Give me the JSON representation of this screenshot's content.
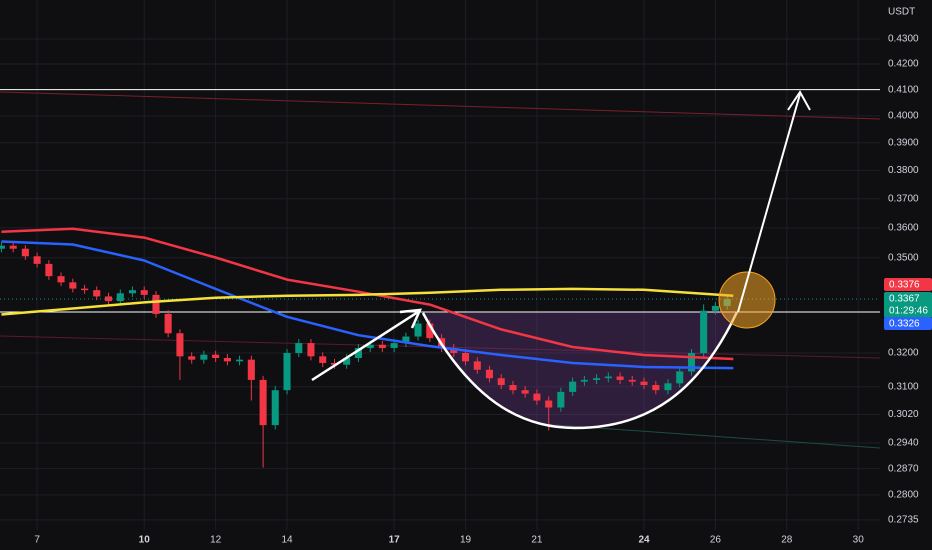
{
  "chart_data": {
    "type": "candlestick",
    "y_axis_label": "USDT",
    "log_scale": true,
    "grid": true,
    "up_color": "#089981",
    "down_color": "#f23645",
    "xlim": [
      5.96,
      30.61
    ],
    "ylim": [
      0.2709,
      0.4461
    ],
    "xticks": [
      7,
      10,
      12,
      14,
      17,
      19,
      21,
      24,
      26,
      28,
      30
    ],
    "xticks_bold": [
      10,
      17,
      24
    ],
    "yticks": [
      {
        "value": 0.43,
        "label": "0.4300"
      },
      {
        "value": 0.42,
        "label": "0.4200"
      },
      {
        "value": 0.41,
        "label": "0.4100"
      },
      {
        "value": 0.4,
        "label": "0.4000"
      },
      {
        "value": 0.39,
        "label": "0.3900"
      },
      {
        "value": 0.38,
        "label": "0.3800"
      },
      {
        "value": 0.37,
        "label": "0.3700"
      },
      {
        "value": 0.36,
        "label": "0.3600"
      },
      {
        "value": 0.35,
        "label": "0.3500"
      },
      {
        "value": 0.32,
        "label": "0.3200"
      },
      {
        "value": 0.31,
        "label": "0.3100"
      },
      {
        "value": 0.302,
        "label": "0.3020"
      },
      {
        "value": 0.294,
        "label": "0.2940"
      },
      {
        "value": 0.287,
        "label": "0.2870"
      },
      {
        "value": 0.28,
        "label": "0.2800"
      },
      0.2735
    ],
    "x": [
      6,
      6.33,
      6.67,
      7,
      7.33,
      7.67,
      8,
      8.33,
      8.67,
      9,
      9.33,
      9.67,
      10,
      10.33,
      10.67,
      11,
      11.33,
      11.67,
      12,
      12.33,
      12.67,
      13,
      13.33,
      13.67,
      14,
      14.33,
      14.67,
      15,
      15.33,
      15.67,
      16,
      16.33,
      16.67,
      17,
      17.33,
      17.67,
      18,
      18.33,
      18.67,
      19,
      19.33,
      19.67,
      20,
      20.33,
      20.67,
      21,
      21.33,
      21.67,
      22,
      22.33,
      22.67,
      23,
      23.33,
      23.67,
      24,
      24.33,
      24.67,
      25,
      25.33,
      25.67,
      26,
      26.33
    ],
    "open": [
      0.353,
      0.354,
      0.353,
      0.3505,
      0.348,
      0.344,
      0.342,
      0.34,
      0.3395,
      0.3375,
      0.336,
      0.3385,
      0.3395,
      0.338,
      0.332,
      0.326,
      0.319,
      0.318,
      0.3195,
      0.3185,
      0.3175,
      0.318,
      0.312,
      0.299,
      0.309,
      0.32,
      0.323,
      0.319,
      0.317,
      0.3165,
      0.3185,
      0.3215,
      0.3225,
      0.3215,
      0.323,
      0.325,
      0.329,
      0.3245,
      0.3215,
      0.32,
      0.3175,
      0.315,
      0.3125,
      0.3105,
      0.309,
      0.308,
      0.306,
      0.304,
      0.3085,
      0.3115,
      0.312,
      0.3125,
      0.313,
      0.312,
      0.3115,
      0.3105,
      0.309,
      0.311,
      0.3145,
      0.32,
      0.333,
      0.3345
    ],
    "high": [
      0.3552,
      0.3552,
      0.3542,
      0.3517,
      0.3492,
      0.3452,
      0.3432,
      0.3412,
      0.3407,
      0.3387,
      0.3397,
      0.3407,
      0.3407,
      0.3392,
      0.3332,
      0.3272,
      0.3202,
      0.3207,
      0.3207,
      0.3197,
      0.3192,
      0.3192,
      0.3132,
      0.3102,
      0.3212,
      0.3242,
      0.3242,
      0.3202,
      0.3182,
      0.3197,
      0.3227,
      0.3237,
      0.3237,
      0.3242,
      0.3262,
      0.3302,
      0.3302,
      0.3257,
      0.3227,
      0.3212,
      0.3187,
      0.3162,
      0.3137,
      0.3117,
      0.3102,
      0.3092,
      0.3072,
      0.3097,
      0.3127,
      0.3132,
      0.3137,
      0.3142,
      0.3142,
      0.3132,
      0.3127,
      0.3117,
      0.3122,
      0.3157,
      0.3212,
      0.335,
      0.3357,
      0.3379
    ],
    "low": [
      0.3518,
      0.3518,
      0.3493,
      0.3468,
      0.3428,
      0.3408,
      0.3388,
      0.3383,
      0.3363,
      0.3348,
      0.3348,
      0.3373,
      0.3368,
      0.3308,
      0.3248,
      0.312,
      0.3168,
      0.3168,
      0.3173,
      0.3163,
      0.3163,
      0.306,
      0.2873,
      0.2978,
      0.3078,
      0.3188,
      0.3178,
      0.3158,
      0.3153,
      0.3153,
      0.3173,
      0.3203,
      0.3203,
      0.3203,
      0.3218,
      0.3238,
      0.3233,
      0.3203,
      0.3188,
      0.3163,
      0.3138,
      0.3113,
      0.3093,
      0.3078,
      0.3068,
      0.3048,
      0.2975,
      0.3028,
      0.3073,
      0.3103,
      0.3108,
      0.3113,
      0.3108,
      0.3103,
      0.3093,
      0.3078,
      0.3078,
      0.3098,
      0.3133,
      0.3188,
      0.3318,
      0.3333
    ],
    "close": [
      0.354,
      0.353,
      0.3505,
      0.348,
      0.344,
      0.342,
      0.34,
      0.3395,
      0.3375,
      0.336,
      0.3385,
      0.3395,
      0.338,
      0.332,
      0.326,
      0.319,
      0.318,
      0.3195,
      0.3185,
      0.3175,
      0.318,
      0.312,
      0.299,
      0.309,
      0.32,
      0.323,
      0.319,
      0.317,
      0.3165,
      0.3185,
      0.3215,
      0.3225,
      0.3215,
      0.323,
      0.325,
      0.329,
      0.3245,
      0.3215,
      0.32,
      0.3175,
      0.315,
      0.3125,
      0.3105,
      0.309,
      0.308,
      0.306,
      0.304,
      0.3085,
      0.3115,
      0.312,
      0.3125,
      0.313,
      0.312,
      0.3115,
      0.3105,
      0.309,
      0.311,
      0.3145,
      0.32,
      0.333,
      0.3345,
      0.3367
    ],
    "moving_averages": [
      {
        "color": "#f23645",
        "x": [
          6,
          8,
          10,
          12,
          14,
          16,
          18,
          20,
          22,
          24,
          26.5
        ],
        "values": [
          0.3587,
          0.3597,
          0.3567,
          0.3501,
          0.3429,
          0.339,
          0.3349,
          0.3272,
          0.3218,
          0.3194,
          0.3182
        ]
      },
      {
        "color": "#2962ff",
        "x": [
          6,
          8,
          10,
          12,
          14,
          16,
          18,
          20,
          22,
          24,
          26.5
        ],
        "values": [
          0.3554,
          0.3544,
          0.3491,
          0.3399,
          0.3311,
          0.3254,
          0.3221,
          0.3194,
          0.317,
          0.3158,
          0.3155
        ]
      },
      {
        "color": "#f5e13a",
        "x": [
          6,
          8,
          10,
          12,
          14,
          16,
          18,
          20,
          22,
          24,
          26.5
        ],
        "values": [
          0.3318,
          0.3337,
          0.3356,
          0.3371,
          0.3377,
          0.338,
          0.3387,
          0.3396,
          0.3399,
          0.3396,
          0.3377
        ]
      }
    ],
    "levels": [
      {
        "value": 0.41,
        "color": "#ffffff"
      },
      {
        "value": 0.3326,
        "color": "#ffffff"
      }
    ],
    "price_tags": [
      {
        "value": 0.3376,
        "color": "#f23645"
      },
      {
        "value": 0.3367,
        "countdown": "01:29:46",
        "color": "#089981"
      },
      {
        "value": 0.3326,
        "color": "#2962ff"
      }
    ]
  }
}
